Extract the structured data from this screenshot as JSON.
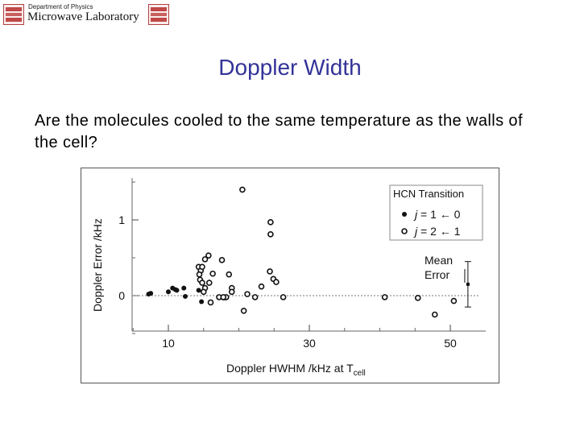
{
  "header": {
    "department": "Department of Physics",
    "lab": "Microwave Laboratory",
    "logo_left_icon": "university-seal-icon",
    "logo_right_icon": "microwave-lab-logo-icon"
  },
  "slide": {
    "title": "Doppler Width",
    "question": "Are the molecules cooled to the same temperature as the walls of the cell?"
  },
  "chart_data": {
    "type": "scatter",
    "xlabel": "Doppler HWHM /kHz at T",
    "xlabel_sub": "cell",
    "ylabel": "Doppler Error /kHz",
    "x_ticks": [
      10,
      30,
      50
    ],
    "y_ticks": [
      0,
      1
    ],
    "xlim": [
      5,
      53
    ],
    "ylim": [
      -0.5,
      1.55
    ],
    "zero_line": "dashed",
    "legend": {
      "title": "HCN Transition",
      "position": "top-right",
      "entries": [
        {
          "marker": "filled",
          "j_label": "j",
          "text": " = 1 ← 0"
        },
        {
          "marker": "open",
          "j_label": "j",
          "text": " = 2 ← 1"
        }
      ]
    },
    "annotation": {
      "text_line1": "Mean",
      "text_line2": "Error",
      "x": 52.5,
      "y": 0.15,
      "err_low": -0.15,
      "err_high": 0.45
    },
    "series": [
      {
        "marker": "filled",
        "x": [
          7.2,
          7.5,
          10.0,
          10.6,
          11.0,
          11.2,
          12.2,
          12.4,
          14.3,
          14.7,
          17.8,
          18.1
        ],
        "y": [
          0.02,
          0.03,
          0.05,
          0.1,
          0.08,
          0.07,
          0.1,
          -0.01,
          0.07,
          -0.08,
          -0.03,
          -0.03
        ]
      },
      {
        "marker": "open",
        "x": [
          14.3,
          14.6,
          14.4,
          14.8,
          14.5,
          15.2,
          15.7,
          14.8,
          15.2,
          16.3,
          15.8,
          15.0,
          16.0,
          17.2,
          19.0,
          17.6,
          18.6,
          18.2,
          17.8,
          20.7,
          20.5,
          19.0,
          21.2,
          22.3,
          23.2,
          24.5,
          24.5,
          24.4,
          24.9,
          25.3,
          26.3,
          40.7,
          45.4,
          47.8,
          50.5
        ],
        "y": [
          0.38,
          0.33,
          0.28,
          0.38,
          0.21,
          0.48,
          0.53,
          0.17,
          0.1,
          0.29,
          0.17,
          0.05,
          -0.09,
          -0.02,
          0.1,
          0.47,
          0.28,
          -0.02,
          -0.02,
          -0.2,
          1.4,
          0.05,
          0.02,
          -0.02,
          0.12,
          0.97,
          0.81,
          0.32,
          0.22,
          0.18,
          -0.02,
          -0.02,
          -0.03,
          -0.25,
          -0.07
        ]
      }
    ]
  }
}
